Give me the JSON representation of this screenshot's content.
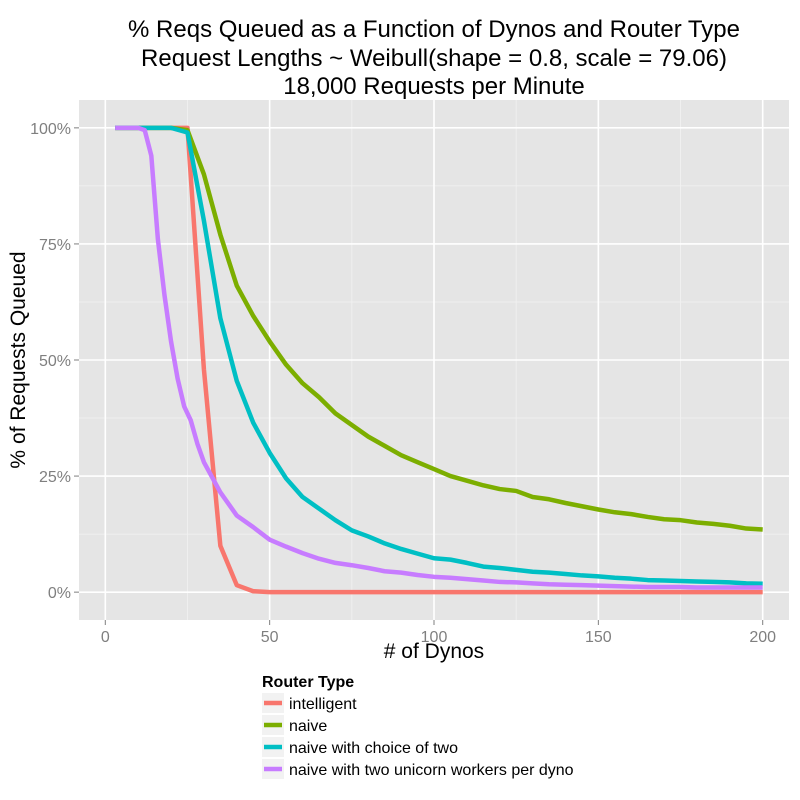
{
  "chart_data": {
    "type": "line",
    "title": [
      "% Reqs Queued as a Function of Dynos and Router Type",
      "Request Lengths ~ Weibull(shape = 0.8, scale = 79.06)",
      "18,000 Requests per Minute"
    ],
    "xlabel": "# of Dynos",
    "ylabel": "% of Requests Queued",
    "xlim": [
      -8,
      208
    ],
    "ylim": [
      -0.06,
      1.06
    ],
    "x_ticks": [
      0,
      50,
      100,
      150,
      200
    ],
    "x_tick_labels": [
      "0",
      "50",
      "100",
      "150",
      "200"
    ],
    "y_ticks": [
      0,
      0.25,
      0.5,
      0.75,
      1.0
    ],
    "y_tick_labels": [
      "0%",
      "25%",
      "50%",
      "75%",
      "100%"
    ],
    "grid": true,
    "legend": {
      "title": "Router Type",
      "position": "bottom"
    },
    "series": [
      {
        "name": "intelligent",
        "color": "#F8766D",
        "points": [
          [
            3,
            1.0
          ],
          [
            10,
            1.0
          ],
          [
            20,
            1.0
          ],
          [
            25,
            1.0
          ],
          [
            30,
            0.48
          ],
          [
            35,
            0.1
          ],
          [
            40,
            0.015
          ],
          [
            45,
            0.002
          ],
          [
            50,
            0.0
          ],
          [
            100,
            0.0
          ],
          [
            150,
            0.0
          ],
          [
            200,
            0.0
          ]
        ]
      },
      {
        "name": "naive",
        "color": "#7CAE00",
        "points": [
          [
            3,
            1.0
          ],
          [
            10,
            1.0
          ],
          [
            20,
            1.0
          ],
          [
            25,
            0.995
          ],
          [
            30,
            0.9
          ],
          [
            35,
            0.77
          ],
          [
            40,
            0.66
          ],
          [
            45,
            0.595
          ],
          [
            50,
            0.54
          ],
          [
            55,
            0.49
          ],
          [
            60,
            0.45
          ],
          [
            65,
            0.42
          ],
          [
            70,
            0.385
          ],
          [
            75,
            0.36
          ],
          [
            80,
            0.335
          ],
          [
            85,
            0.315
          ],
          [
            90,
            0.295
          ],
          [
            95,
            0.28
          ],
          [
            100,
            0.265
          ],
          [
            105,
            0.25
          ],
          [
            110,
            0.24
          ],
          [
            115,
            0.23
          ],
          [
            120,
            0.222
          ],
          [
            125,
            0.218
          ],
          [
            130,
            0.205
          ],
          [
            135,
            0.2
          ],
          [
            140,
            0.192
          ],
          [
            145,
            0.185
          ],
          [
            150,
            0.178
          ],
          [
            155,
            0.172
          ],
          [
            160,
            0.168
          ],
          [
            165,
            0.162
          ],
          [
            170,
            0.157
          ],
          [
            175,
            0.155
          ],
          [
            180,
            0.15
          ],
          [
            185,
            0.147
          ],
          [
            190,
            0.143
          ],
          [
            195,
            0.137
          ],
          [
            200,
            0.135
          ]
        ]
      },
      {
        "name": "naive with choice of two",
        "color": "#00BFC4",
        "points": [
          [
            3,
            1.0
          ],
          [
            10,
            1.0
          ],
          [
            20,
            1.0
          ],
          [
            25,
            0.99
          ],
          [
            30,
            0.8
          ],
          [
            35,
            0.59
          ],
          [
            40,
            0.455
          ],
          [
            45,
            0.365
          ],
          [
            50,
            0.3
          ],
          [
            55,
            0.245
          ],
          [
            60,
            0.205
          ],
          [
            65,
            0.18
          ],
          [
            70,
            0.155
          ],
          [
            75,
            0.133
          ],
          [
            80,
            0.12
          ],
          [
            85,
            0.105
          ],
          [
            90,
            0.093
          ],
          [
            95,
            0.083
          ],
          [
            100,
            0.073
          ],
          [
            105,
            0.07
          ],
          [
            110,
            0.063
          ],
          [
            115,
            0.055
          ],
          [
            120,
            0.052
          ],
          [
            125,
            0.048
          ],
          [
            130,
            0.044
          ],
          [
            135,
            0.042
          ],
          [
            140,
            0.039
          ],
          [
            145,
            0.036
          ],
          [
            150,
            0.034
          ],
          [
            155,
            0.031
          ],
          [
            160,
            0.029
          ],
          [
            165,
            0.026
          ],
          [
            170,
            0.025
          ],
          [
            175,
            0.024
          ],
          [
            180,
            0.023
          ],
          [
            185,
            0.022
          ],
          [
            190,
            0.021
          ],
          [
            195,
            0.019
          ],
          [
            200,
            0.018
          ]
        ]
      },
      {
        "name": "naive with two unicorn workers per dyno",
        "color": "#C77CFF",
        "points": [
          [
            3,
            1.0
          ],
          [
            10,
            1.0
          ],
          [
            12,
            0.995
          ],
          [
            14,
            0.94
          ],
          [
            16,
            0.76
          ],
          [
            18,
            0.64
          ],
          [
            20,
            0.54
          ],
          [
            22,
            0.46
          ],
          [
            24,
            0.4
          ],
          [
            26,
            0.37
          ],
          [
            28,
            0.32
          ],
          [
            30,
            0.28
          ],
          [
            35,
            0.215
          ],
          [
            40,
            0.165
          ],
          [
            45,
            0.14
          ],
          [
            50,
            0.113
          ],
          [
            55,
            0.098
          ],
          [
            60,
            0.084
          ],
          [
            65,
            0.072
          ],
          [
            70,
            0.063
          ],
          [
            75,
            0.058
          ],
          [
            80,
            0.052
          ],
          [
            85,
            0.045
          ],
          [
            90,
            0.042
          ],
          [
            95,
            0.037
          ],
          [
            100,
            0.033
          ],
          [
            105,
            0.031
          ],
          [
            110,
            0.028
          ],
          [
            115,
            0.025
          ],
          [
            120,
            0.022
          ],
          [
            125,
            0.021
          ],
          [
            130,
            0.019
          ],
          [
            135,
            0.017
          ],
          [
            140,
            0.016
          ],
          [
            145,
            0.015
          ],
          [
            150,
            0.014
          ],
          [
            155,
            0.013
          ],
          [
            160,
            0.012
          ],
          [
            165,
            0.011
          ],
          [
            170,
            0.011
          ],
          [
            175,
            0.011
          ],
          [
            180,
            0.01
          ],
          [
            185,
            0.01
          ],
          [
            190,
            0.01
          ],
          [
            195,
            0.01
          ],
          [
            200,
            0.01
          ]
        ]
      }
    ]
  }
}
